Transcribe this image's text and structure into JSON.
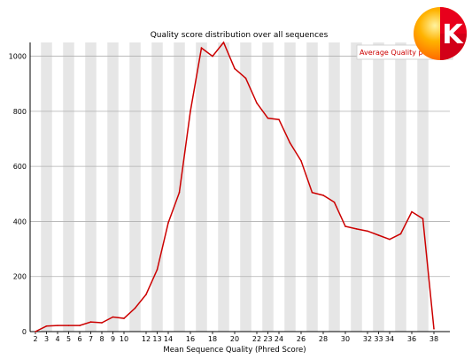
{
  "chart_data": {
    "type": "line",
    "title": "Quality score distribution over all sequences",
    "xlabel": "Mean Sequence Quality (Phred Score)",
    "ylabel": "",
    "x_range": [
      2,
      38
    ],
    "ylim": [
      0,
      1050
    ],
    "x_tick_labels": [
      "2",
      "3",
      "4",
      "5",
      "6",
      "7",
      "8",
      "9",
      "10",
      "12",
      "13",
      "14",
      "16",
      "18",
      "20",
      "22",
      "23",
      "24",
      "26",
      "28",
      "30",
      "32",
      "33",
      "34",
      "36",
      "38"
    ],
    "y_ticks": [
      0,
      200,
      400,
      600,
      800,
      1000
    ],
    "grid": "horizontal",
    "band_stripes": true,
    "legend_position": "top-right",
    "series": [
      {
        "name": "Average Quality per read",
        "color": "#cc0000",
        "x": [
          2,
          3,
          4,
          5,
          6,
          7,
          8,
          9,
          10,
          11,
          12,
          13,
          14,
          15,
          16,
          17,
          18,
          19,
          20,
          21,
          22,
          23,
          24,
          25,
          26,
          27,
          28,
          29,
          30,
          31,
          32,
          33,
          34,
          35,
          36,
          37,
          38
        ],
        "y": [
          0,
          20,
          22,
          22,
          22,
          35,
          32,
          53,
          48,
          85,
          135,
          225,
          395,
          505,
          800,
          1030,
          1000,
          1050,
          955,
          920,
          830,
          775,
          770,
          685,
          620,
          505,
          495,
          470,
          382,
          373,
          365,
          350,
          335,
          355,
          435,
          410,
          10
        ]
      }
    ]
  },
  "logo": {
    "name": "k-logo-badge",
    "letter": "K"
  }
}
